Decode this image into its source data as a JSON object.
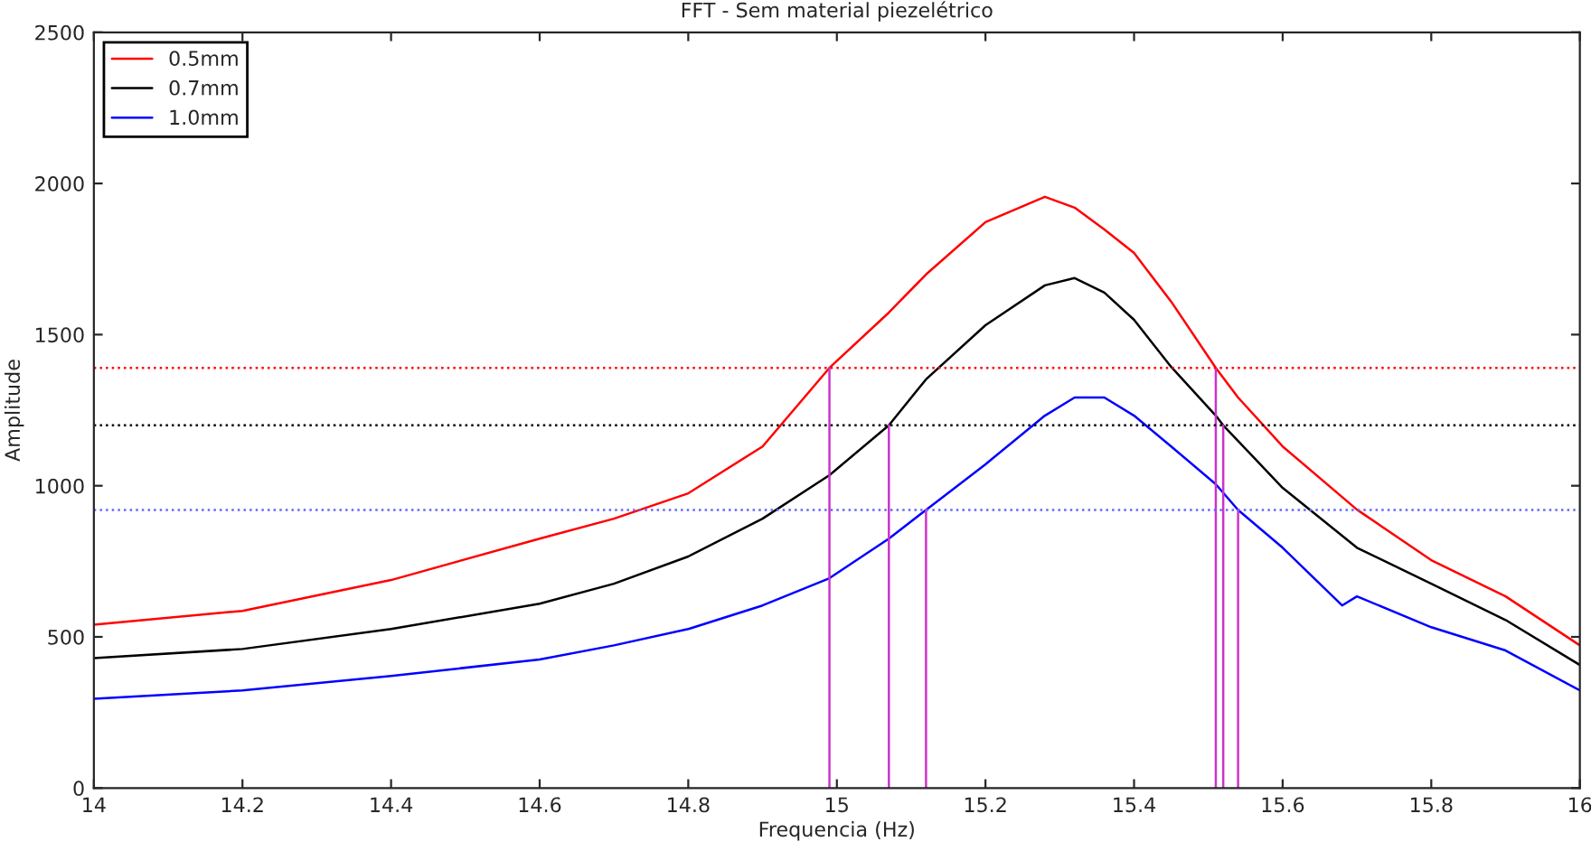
{
  "chart_data": {
    "type": "line",
    "title": "FFT - Sem material piezelétrico",
    "xlabel": "Frequencia (Hz)",
    "ylabel": "Amplitude",
    "xlim": [
      14,
      16
    ],
    "xticks": [
      14,
      14.2,
      14.4,
      14.6,
      14.8,
      15,
      15.2,
      15.4,
      15.6,
      15.8,
      16
    ],
    "ylim": [
      0,
      2500
    ],
    "yticks": [
      0,
      500,
      1000,
      1500,
      2000,
      2500
    ],
    "grid": false,
    "legend": "top left",
    "line_style": "solid",
    "series": [
      {
        "name": "0.5mm",
        "color": "#ff0000",
        "x": [
          14.0,
          14.2,
          14.4,
          14.6,
          14.7,
          14.8,
          14.9,
          14.99,
          15.07,
          15.12,
          15.2,
          15.28,
          15.32,
          15.36,
          15.4,
          15.45,
          15.51,
          15.54,
          15.6,
          15.7,
          15.8,
          15.9,
          16.0
        ],
        "values": [
          540,
          586,
          688,
          825,
          891,
          975,
          1130,
          1390,
          1573,
          1699,
          1872,
          1956,
          1920,
          1848,
          1770,
          1609,
          1390,
          1292,
          1130,
          921,
          754,
          634,
          472
        ]
      },
      {
        "name": "0.7mm",
        "color": "#000000",
        "x": [
          14.0,
          14.2,
          14.4,
          14.6,
          14.7,
          14.8,
          14.9,
          14.99,
          15.07,
          15.12,
          15.2,
          15.28,
          15.32,
          15.36,
          15.4,
          15.45,
          15.51,
          15.52,
          15.6,
          15.7,
          15.8,
          15.9,
          16.0
        ],
        "values": [
          430,
          460,
          526,
          610,
          676,
          766,
          891,
          1035,
          1200,
          1352,
          1531,
          1663,
          1687,
          1639,
          1549,
          1393,
          1232,
          1200,
          993,
          795,
          676,
          556,
          407
        ]
      },
      {
        "name": "1.0mm",
        "color": "#0000ff",
        "x": [
          14.0,
          14.2,
          14.4,
          14.6,
          14.7,
          14.8,
          14.9,
          14.99,
          15.07,
          15.12,
          15.2,
          15.28,
          15.32,
          15.36,
          15.4,
          15.45,
          15.51,
          15.54,
          15.6,
          15.68,
          15.7,
          15.8,
          15.9,
          16.0
        ],
        "values": [
          295,
          323,
          371,
          425,
          472,
          526,
          604,
          694,
          825,
          920,
          1071,
          1232,
          1292,
          1292,
          1232,
          1130,
          1005,
          920,
          795,
          604,
          634,
          532,
          455,
          323
        ]
      },
      {
        "color": "#cc33cc",
        "x": [
          14.99,
          14.99
        ],
        "values": [
          0,
          1390
        ]
      },
      {
        "color": "#cc33cc",
        "x": [
          15.51,
          15.51
        ],
        "values": [
          0,
          1390
        ]
      },
      {
        "color": "#cc33cc",
        "x": [
          15.07,
          15.07
        ],
        "values": [
          0,
          1200
        ]
      },
      {
        "color": "#cc33cc",
        "x": [
          15.52,
          15.52
        ],
        "values": [
          0,
          1200
        ]
      },
      {
        "color": "#cc33cc",
        "x": [
          15.12,
          15.12
        ],
        "values": [
          0,
          920
        ]
      },
      {
        "color": "#cc33cc",
        "x": [
          15.54,
          15.54
        ],
        "values": [
          0,
          920
        ]
      }
    ],
    "ref_lines": [
      {
        "axis": "y",
        "value": 1390,
        "color": "#ff0000",
        "line_style": "dotted"
      },
      {
        "axis": "y",
        "value": 1200,
        "color": "#000000",
        "line_style": "dotted"
      },
      {
        "axis": "y",
        "value": 920,
        "color": "#6666ff",
        "line_style": "dotted"
      }
    ]
  }
}
